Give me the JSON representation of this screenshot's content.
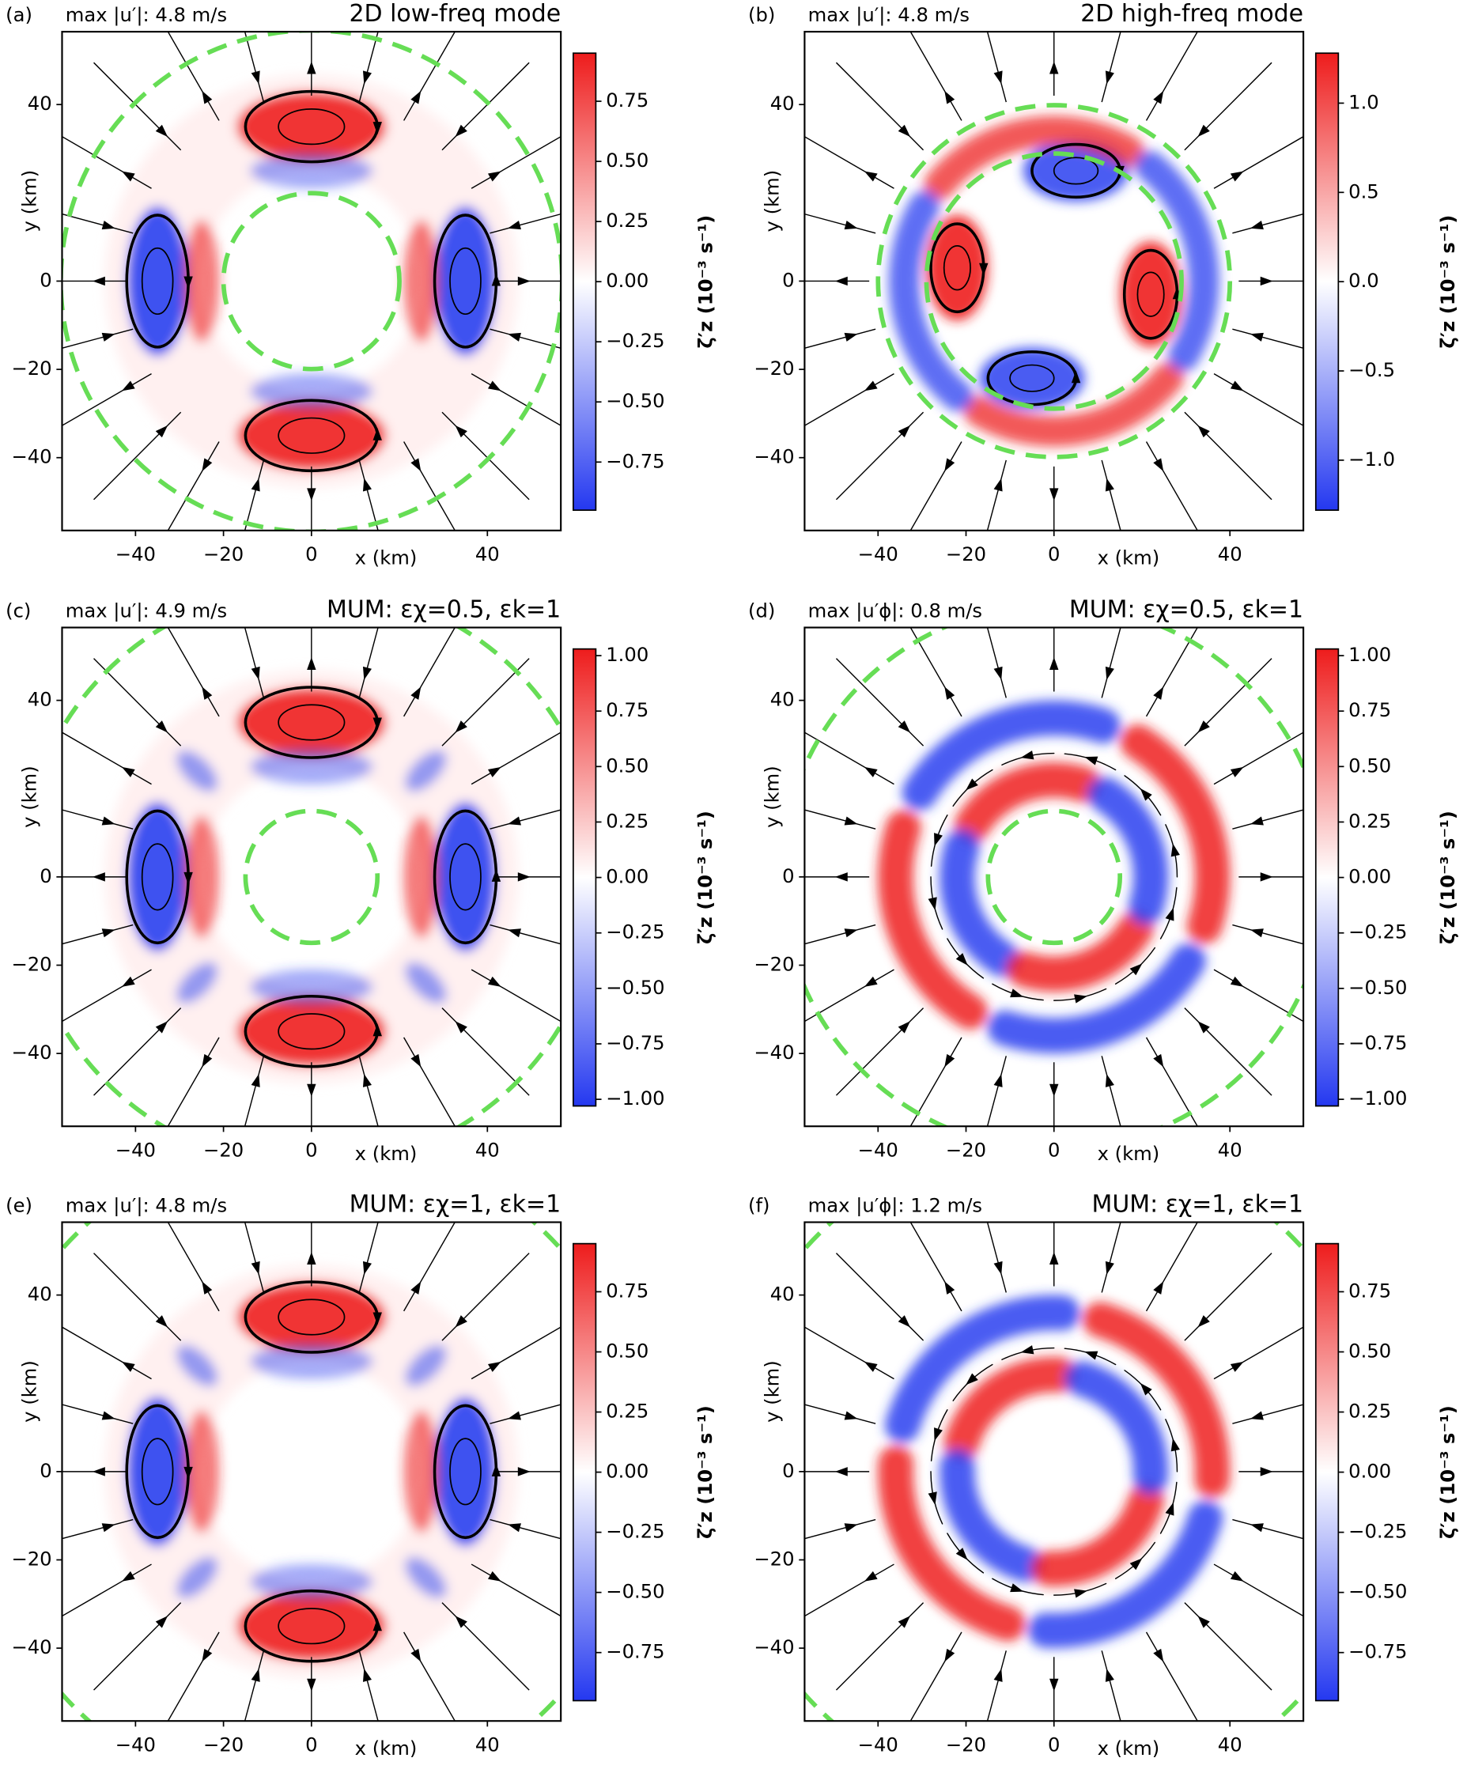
{
  "chart_data": [
    {
      "type": "heatmap",
      "panel_label": "(a)",
      "annotation": "max |u′|: 4.8 m/s",
      "title": "2D low-freq mode",
      "xlabel": "x (km)",
      "ylabel": "y (km)",
      "colorbar_label": "ζ′z (10⁻³ s⁻¹)",
      "xlim": [
        -56.7,
        56.7
      ],
      "ylim": [
        -56.5,
        56.5
      ],
      "xticks": [
        {
          "value": -40,
          "label": "−40"
        },
        {
          "value": -20,
          "label": "−20"
        },
        0,
        40
      ],
      "yticks": [
        {
          "value": -40,
          "label": "−40"
        },
        {
          "value": -20,
          "label": "−20"
        },
        0,
        40
      ],
      "clim": [
        -0.95,
        0.95
      ],
      "cticks": [
        0.75,
        {
          "value": 0.5,
          "label": "0.50"
        },
        0.25,
        {
          "value": 0,
          "label": "0.00"
        },
        {
          "value": -0.25,
          "label": "−0.25"
        },
        {
          "value": -0.5,
          "label": "−0.50"
        },
        {
          "value": -0.75,
          "label": "−0.75"
        }
      ]
    },
    {
      "type": "heatmap",
      "panel_label": "(b)",
      "annotation": "max |u′|: 4.8 m/s",
      "title": "2D high-freq mode",
      "xlabel": "x (km)",
      "ylabel": "y (km)",
      "colorbar_label": "ζ′z (10⁻³ s⁻¹)",
      "xlim": [
        -56.7,
        56.7
      ],
      "ylim": [
        -56.5,
        56.5
      ],
      "xticks": [
        {
          "value": -40,
          "label": "−40"
        },
        {
          "value": -20,
          "label": "−20"
        },
        0,
        40
      ],
      "yticks": [
        {
          "value": -40,
          "label": "−40"
        },
        {
          "value": -20,
          "label": "−20"
        },
        0,
        40
      ],
      "clim": [
        -1.28,
        1.28
      ],
      "cticks": [
        {
          "value": 1,
          "label": "1.0"
        },
        0.5,
        {
          "value": 0,
          "label": "0.0"
        },
        {
          "value": -0.5,
          "label": "−0.5"
        },
        {
          "value": -1,
          "label": "−1.0"
        }
      ]
    },
    {
      "type": "heatmap",
      "panel_label": "(c)",
      "annotation": "max |u′|: 4.9 m/s",
      "title": "MUM: εχ=0.5, εk=1",
      "xlabel": "x (km)",
      "ylabel": "y (km)",
      "colorbar_label": "ζ′z (10⁻³ s⁻¹)",
      "xlim": [
        -56.7,
        56.7
      ],
      "ylim": [
        -56.5,
        56.5
      ],
      "xticks": [
        {
          "value": -40,
          "label": "−40"
        },
        {
          "value": -20,
          "label": "−20"
        },
        0,
        40
      ],
      "yticks": [
        {
          "value": -40,
          "label": "−40"
        },
        {
          "value": -20,
          "label": "−20"
        },
        0,
        40
      ],
      "clim": [
        -1.03,
        1.03
      ],
      "cticks": [
        {
          "value": 1,
          "label": "1.00"
        },
        0.75,
        {
          "value": 0.5,
          "label": "0.50"
        },
        0.25,
        {
          "value": 0,
          "label": "0.00"
        },
        {
          "value": -0.25,
          "label": "−0.25"
        },
        {
          "value": -0.5,
          "label": "−0.50"
        },
        {
          "value": -0.75,
          "label": "−0.75"
        },
        {
          "value": -1,
          "label": "−1.00"
        }
      ]
    },
    {
      "type": "heatmap",
      "panel_label": "(d)",
      "annotation": "max |u′ϕ|: 0.8 m/s",
      "title": "MUM: εχ=0.5, εk=1",
      "xlabel": "x (km)",
      "ylabel": "y (km)",
      "colorbar_label": "ζ′z (10⁻³ s⁻¹)",
      "xlim": [
        -56.7,
        56.7
      ],
      "ylim": [
        -56.5,
        56.5
      ],
      "xticks": [
        {
          "value": -40,
          "label": "−40"
        },
        {
          "value": -20,
          "label": "−20"
        },
        0,
        40
      ],
      "yticks": [
        {
          "value": -40,
          "label": "−40"
        },
        {
          "value": -20,
          "label": "−20"
        },
        0,
        40
      ],
      "clim": [
        -1.03,
        1.03
      ],
      "cticks": [
        {
          "value": 1,
          "label": "1.00"
        },
        0.75,
        {
          "value": 0.5,
          "label": "0.50"
        },
        0.25,
        {
          "value": 0,
          "label": "0.00"
        },
        {
          "value": -0.25,
          "label": "−0.25"
        },
        {
          "value": -0.5,
          "label": "−0.50"
        },
        {
          "value": -0.75,
          "label": "−0.75"
        },
        {
          "value": -1,
          "label": "−1.00"
        }
      ]
    },
    {
      "type": "heatmap",
      "panel_label": "(e)",
      "annotation": "max |u′|: 4.8 m/s",
      "title": "MUM: εχ=1, εk=1",
      "xlabel": "x (km)",
      "ylabel": "y (km)",
      "colorbar_label": "ζ′z (10⁻³ s⁻¹)",
      "xlim": [
        -56.7,
        56.7
      ],
      "ylim": [
        -56.5,
        56.5
      ],
      "xticks": [
        {
          "value": -40,
          "label": "−40"
        },
        {
          "value": -20,
          "label": "−20"
        },
        0,
        40
      ],
      "yticks": [
        {
          "value": -40,
          "label": "−40"
        },
        {
          "value": -20,
          "label": "−20"
        },
        0,
        40
      ],
      "clim": [
        -0.95,
        0.95
      ],
      "cticks": [
        0.75,
        {
          "value": 0.5,
          "label": "0.50"
        },
        0.25,
        {
          "value": 0,
          "label": "0.00"
        },
        {
          "value": -0.25,
          "label": "−0.25"
        },
        {
          "value": -0.5,
          "label": "−0.50"
        },
        {
          "value": -0.75,
          "label": "−0.75"
        }
      ]
    },
    {
      "type": "heatmap",
      "panel_label": "(f)",
      "annotation": "max |u′ϕ|: 1.2 m/s",
      "title": "MUM: εχ=1, εk=1",
      "xlabel": "x (km)",
      "ylabel": "y (km)",
      "colorbar_label": "ζ′z (10⁻³ s⁻¹)",
      "xlim": [
        -56.7,
        56.7
      ],
      "ylim": [
        -56.5,
        56.5
      ],
      "xticks": [
        {
          "value": -40,
          "label": "−40"
        },
        {
          "value": -20,
          "label": "−20"
        },
        0,
        40
      ],
      "yticks": [
        {
          "value": -40,
          "label": "−40"
        },
        {
          "value": -20,
          "label": "−20"
        },
        0,
        40
      ],
      "clim": [
        -0.95,
        0.95
      ],
      "cticks": [
        0.75,
        {
          "value": 0.5,
          "label": "0.50"
        },
        0.25,
        {
          "value": 0,
          "label": "0.00"
        },
        {
          "value": -0.25,
          "label": "−0.25"
        },
        {
          "value": -0.5,
          "label": "−0.50"
        },
        {
          "value": -0.75,
          "label": "−0.75"
        }
      ]
    }
  ]
}
